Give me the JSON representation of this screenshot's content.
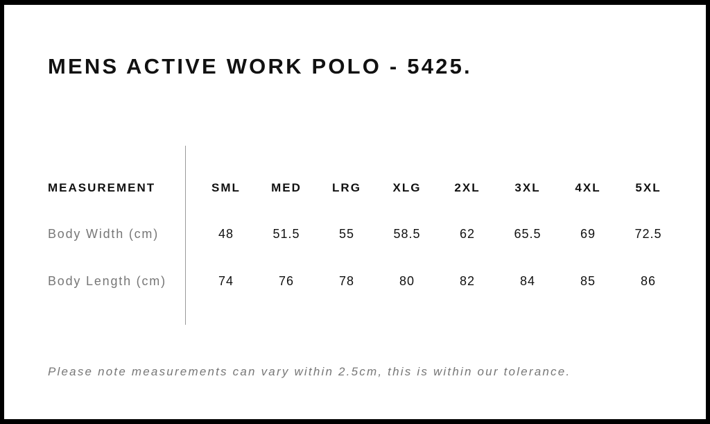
{
  "title": "MENS ACTIVE WORK POLO - 5425.",
  "table": {
    "header_label": "MEASUREMENT",
    "sizes": [
      "SML",
      "MED",
      "LRG",
      "XLG",
      "2XL",
      "3XL",
      "4XL",
      "5XL"
    ],
    "rows": [
      {
        "label": "Body Width (cm)",
        "values": [
          "48",
          "51.5",
          "55",
          "58.5",
          "62",
          "65.5",
          "69",
          "72.5"
        ]
      },
      {
        "label": "Body Length (cm)",
        "values": [
          "74",
          "76",
          "78",
          "80",
          "82",
          "84",
          "85",
          "86"
        ]
      }
    ]
  },
  "note": "Please note measurements can vary within 2.5cm, this is within our tolerance."
}
